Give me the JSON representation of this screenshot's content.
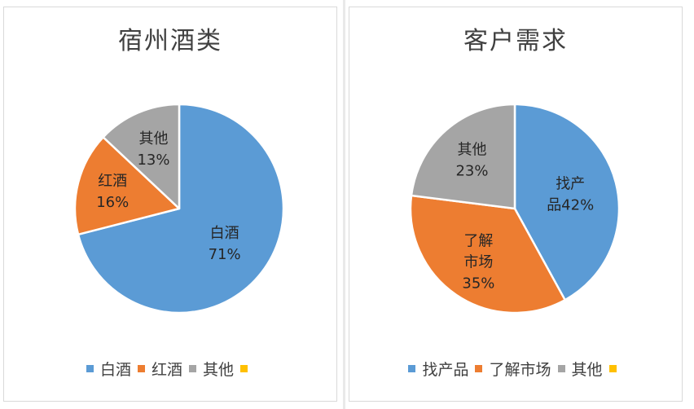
{
  "chart_data": [
    {
      "type": "pie",
      "title": "宿州酒类",
      "categories": [
        "白酒",
        "红酒",
        "其他"
      ],
      "values": [
        71,
        16,
        13
      ],
      "labels": [
        [
          "白酒",
          "71%"
        ],
        [
          "红酒",
          "16%"
        ],
        [
          "其他",
          "13%"
        ]
      ],
      "colors": [
        "#5b9bd5",
        "#ed7d31",
        "#a5a5a5"
      ],
      "legend": [
        "白酒",
        "红酒",
        "其他",
        ""
      ],
      "legend_colors": [
        "#5b9bd5",
        "#ed7d31",
        "#a5a5a5",
        "#ffc000"
      ],
      "legend_position": "bottom"
    },
    {
      "type": "pie",
      "title": "客户需求",
      "categories": [
        "找产品",
        "了解市场",
        "其他"
      ],
      "values": [
        42,
        35,
        23
      ],
      "labels": [
        [
          "找产",
          "品42%"
        ],
        [
          "了解",
          "市场",
          "35%"
        ],
        [
          "其他",
          "23%"
        ]
      ],
      "colors": [
        "#5b9bd5",
        "#ed7d31",
        "#a5a5a5"
      ],
      "legend": [
        "找产品",
        "了解市场",
        "其他",
        ""
      ],
      "legend_colors": [
        "#5b9bd5",
        "#ed7d31",
        "#a5a5a5",
        "#ffc000"
      ],
      "legend_position": "bottom"
    }
  ]
}
